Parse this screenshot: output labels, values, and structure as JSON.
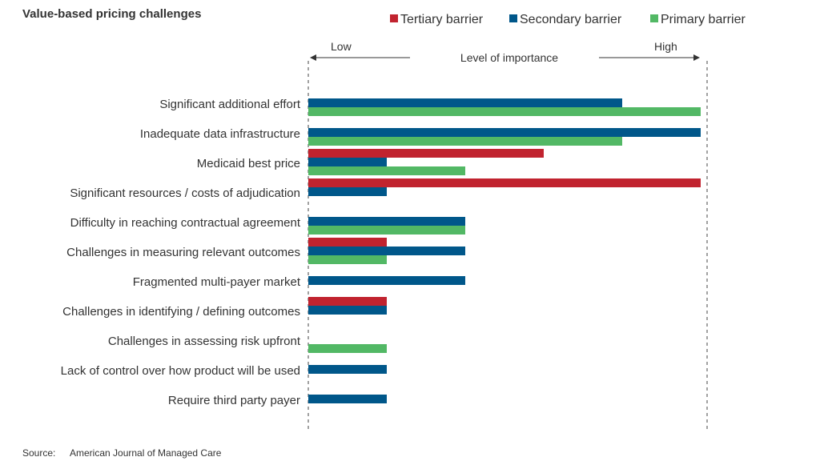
{
  "chart_data": {
    "type": "bar",
    "orientation": "horizontal",
    "title": "Value-based pricing challenges",
    "axis": {
      "label": "Level of importance",
      "low_label": "Low",
      "high_label": "High",
      "xlim": [
        0,
        5
      ],
      "ticks_shown": false,
      "grid": false
    },
    "legend": {
      "placement": "top-right"
    },
    "categories": [
      "Significant additional effort",
      "Inadequate data infrastructure",
      "Medicaid best price",
      "Significant resources / costs of adjudication",
      "Difficulty in reaching contractual agreement",
      "Challenges in measuring relevant outcomes",
      "Fragmented multi-payer market",
      "Challenges in identifying / defining outcomes",
      "Challenges in assessing risk upfront",
      "Lack of control over how product will be used",
      "Require third party payer"
    ],
    "series": [
      {
        "name": "Tertiary barrier",
        "color": "#c1232f",
        "values": [
          0,
          0,
          3,
          5,
          0,
          1,
          0,
          1,
          0,
          0,
          0
        ]
      },
      {
        "name": "Secondary barrier",
        "color": "#00578a",
        "values": [
          4,
          5,
          1,
          1,
          2,
          2,
          2,
          1,
          0,
          1,
          1
        ]
      },
      {
        "name": "Primary barrier",
        "color": "#52b865",
        "values": [
          5,
          4,
          2,
          0,
          2,
          1,
          0,
          0,
          1,
          0,
          0
        ]
      }
    ],
    "source_label": "Source:",
    "source": "American Journal of Managed Care"
  }
}
